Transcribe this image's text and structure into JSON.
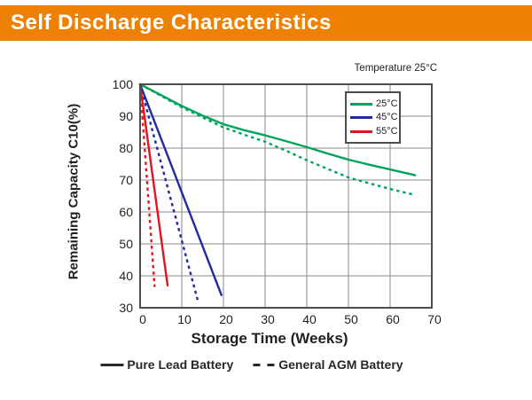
{
  "header": {
    "title": "Self Discharge Characteristics",
    "bg_color": "#ee8103",
    "text_color": "#ffffff"
  },
  "chart_data": {
    "type": "line",
    "annotation": "Temperature 25°C",
    "xlabel": "Storage Time (Weeks)",
    "ylabel": "Remaining Capacity C10(%)",
    "xlim": [
      0,
      70
    ],
    "ylim": [
      30,
      100
    ],
    "xticks": [
      0,
      10,
      20,
      30,
      40,
      50,
      60,
      70
    ],
    "yticks": [
      100,
      90,
      80,
      70,
      60,
      50,
      40,
      30
    ],
    "grid": true,
    "grid_color": "#8a8a8a",
    "border_color": "#4d4d4d",
    "series": [
      {
        "name": "25°C Pure Lead Battery",
        "temperature": "25°C",
        "battery_type": "Pure Lead Battery",
        "style": "solid",
        "color": "#00a45a",
        "points": [
          [
            0,
            100
          ],
          [
            5,
            96.6
          ],
          [
            10,
            93.2
          ],
          [
            15,
            90.2
          ],
          [
            20,
            87.5
          ],
          [
            25,
            85.6
          ],
          [
            30,
            84
          ],
          [
            35,
            82.2
          ],
          [
            40,
            80.3
          ],
          [
            45,
            78.3
          ],
          [
            50,
            76.4
          ],
          [
            55,
            74.8
          ],
          [
            60,
            73.3
          ],
          [
            66,
            71.5
          ]
        ]
      },
      {
        "name": "25°C General AGM Battery",
        "temperature": "25°C",
        "battery_type": "General AGM Battery",
        "style": "dashed",
        "color": "#00a45a",
        "points": [
          [
            0,
            100
          ],
          [
            5,
            96.4
          ],
          [
            10,
            92.8
          ],
          [
            15,
            89.6
          ],
          [
            20,
            86.5
          ],
          [
            25,
            84.2
          ],
          [
            30,
            82
          ],
          [
            35,
            79.2
          ],
          [
            40,
            76.2
          ],
          [
            45,
            73.5
          ],
          [
            50,
            70.8
          ],
          [
            55,
            69
          ],
          [
            60,
            67.2
          ],
          [
            66,
            65.3
          ]
        ]
      },
      {
        "name": "45°C Pure Lead Battery",
        "temperature": "45°C",
        "battery_type": "Pure Lead Battery",
        "style": "solid",
        "color": "#232a9f",
        "points": [
          [
            0,
            100
          ],
          [
            19.5,
            34
          ]
        ]
      },
      {
        "name": "45°C General AGM Battery",
        "temperature": "45°C",
        "battery_type": "General AGM Battery",
        "style": "dashed",
        "color": "#232a9f",
        "points": [
          [
            0,
            100
          ],
          [
            14,
            31.5
          ]
        ]
      },
      {
        "name": "55°C Pure Lead Battery",
        "temperature": "55°C",
        "battery_type": "Pure Lead Battery",
        "style": "solid",
        "color": "#e6131f",
        "points": [
          [
            0,
            100
          ],
          [
            6.6,
            37
          ]
        ]
      },
      {
        "name": "55°C General AGM Battery",
        "temperature": "55°C",
        "battery_type": "General AGM Battery",
        "style": "dashed",
        "color": "#e6131f",
        "points": [
          [
            0,
            100
          ],
          [
            3.5,
            36.5
          ]
        ]
      }
    ],
    "temperature_legend": {
      "entries": [
        {
          "label": "25°C",
          "color": "#00a45a"
        },
        {
          "label": "45°C",
          "color": "#232a9f"
        },
        {
          "label": "55°C",
          "color": "#e6131f"
        }
      ]
    },
    "style_legend": {
      "solid_label": "Pure Lead Battery",
      "dashed_label": "General AGM Battery"
    }
  }
}
